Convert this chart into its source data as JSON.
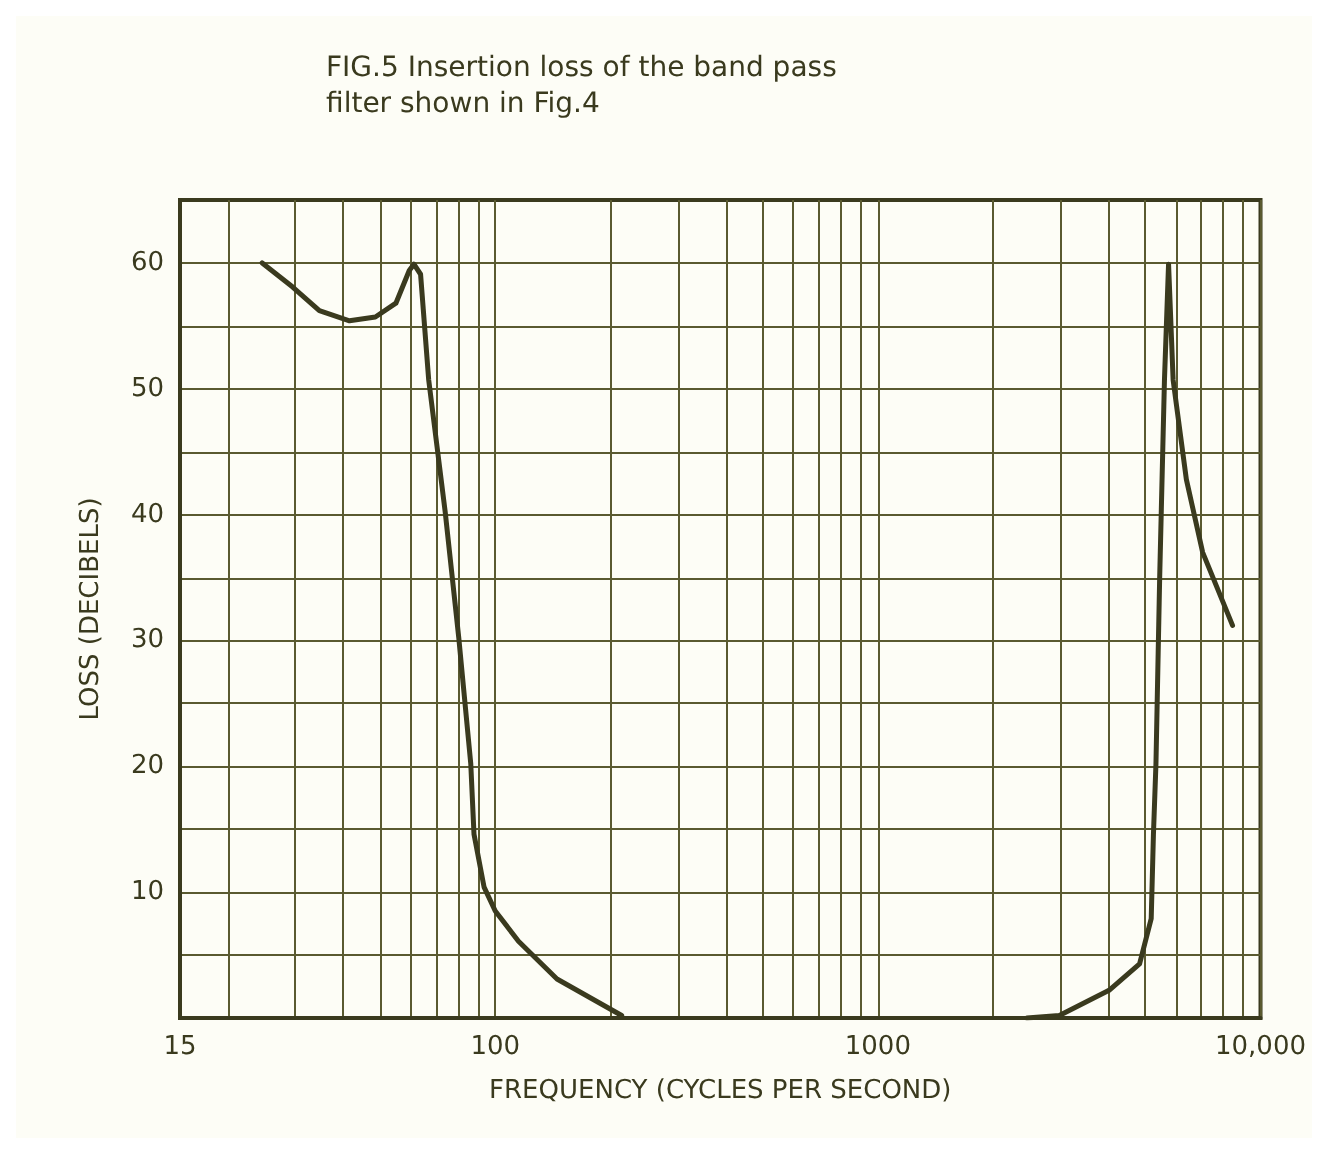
{
  "chart_data": {
    "type": "line",
    "title": "FIG.5 Insertion loss of the band pass\nfilter shown in Fig.4",
    "xlabel": "FREQUENCY (CYCLES PER SECOND)",
    "ylabel": "LOSS (DECIBELS)",
    "log": "x",
    "grid": true,
    "marker": "none",
    "line_style": "solid",
    "xlim": [
      15,
      10000
    ],
    "xticks": [
      15,
      {
        "value": 20,
        "label": null
      },
      {
        "value": 30,
        "label": null
      },
      {
        "value": 40,
        "label": null
      },
      {
        "value": 50,
        "label": null
      },
      {
        "value": 60,
        "label": null
      },
      {
        "value": 70,
        "label": null
      },
      {
        "value": 80,
        "label": null
      },
      {
        "value": 90,
        "label": null
      },
      100,
      {
        "value": 200,
        "label": null
      },
      {
        "value": 300,
        "label": null
      },
      {
        "value": 400,
        "label": null
      },
      {
        "value": 500,
        "label": null
      },
      {
        "value": 600,
        "label": null
      },
      {
        "value": 700,
        "label": null
      },
      {
        "value": 800,
        "label": null
      },
      {
        "value": 900,
        "label": null
      },
      1000,
      {
        "value": 2000,
        "label": null
      },
      {
        "value": 3000,
        "label": null
      },
      {
        "value": 4000,
        "label": null
      },
      {
        "value": 5000,
        "label": null
      },
      {
        "value": 6000,
        "label": null
      },
      {
        "value": 7000,
        "label": null
      },
      {
        "value": 8000,
        "label": null
      },
      {
        "value": 9000,
        "label": null
      },
      {
        "value": 10000,
        "label": "10,000"
      }
    ],
    "ylim": [
      0,
      65
    ],
    "yticks": [
      {
        "value": 5,
        "label": null
      },
      10,
      {
        "value": 15,
        "label": null
      },
      20,
      {
        "value": 25,
        "label": null
      },
      30,
      {
        "value": 35,
        "label": null
      },
      40,
      {
        "value": 45,
        "label": null
      },
      50,
      {
        "value": 55,
        "label": null
      },
      60
    ],
    "series": [
      {
        "color": "#3a3a1e",
        "x": [
          24.6,
          29.5,
          34.7,
          41.6,
          48.6,
          55,
          59.6,
          61.3,
          63.8,
          67,
          74,
          80.3,
          86.3,
          88,
          93.5,
          100,
          115,
          145,
          214,
          228,
          2450,
          2980,
          4020,
          4830,
          5180,
          5250,
          5330,
          5450,
          5610,
          5750,
          5910,
          6400,
          7060,
          8450
        ],
        "values": [
          60,
          58.1,
          56.2,
          55.4,
          55.7,
          56.8,
          59.4,
          59.9,
          59.1,
          50.7,
          40.2,
          30.2,
          20.2,
          14.6,
          10.4,
          8.5,
          6.1,
          3.1,
          0.2,
          null,
          0,
          0.2,
          2.2,
          4.3,
          7.9,
          14.6,
          20.2,
          34.9,
          50.7,
          59.9,
          50.7,
          42.8,
          37,
          31.2
        ]
      }
    ]
  }
}
